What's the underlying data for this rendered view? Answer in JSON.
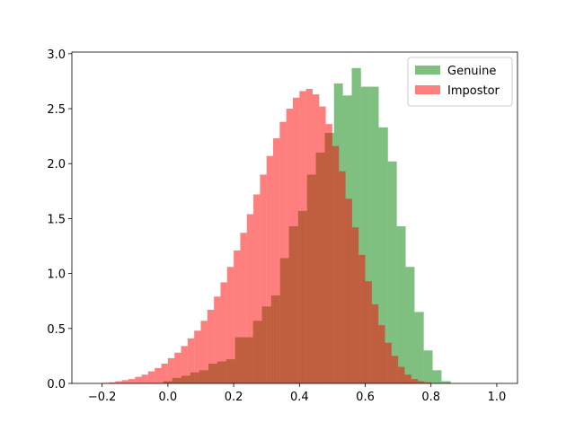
{
  "chart_data": {
    "type": "histogram",
    "xlim": [
      -0.292,
      1.063
    ],
    "ylim": [
      0,
      3.015
    ],
    "xticks": [
      {
        "value": -0.2,
        "label": "−0.2"
      },
      {
        "value": 0,
        "label": "0.0"
      },
      {
        "value": 0.2,
        "label": "0.2"
      },
      {
        "value": 0.4,
        "label": "0.4"
      },
      {
        "value": 0.6,
        "label": "0.6"
      },
      {
        "value": 0.8,
        "label": "0.8"
      },
      {
        "value": 1,
        "label": "1.0"
      }
    ],
    "yticks": [
      {
        "value": 0,
        "label": "0.0"
      },
      {
        "value": 0.5,
        "label": "0.5"
      },
      {
        "value": 1,
        "label": "1.0"
      },
      {
        "value": 1.5,
        "label": "1.5"
      },
      {
        "value": 2,
        "label": "2.0"
      },
      {
        "value": 2.5,
        "label": "2.5"
      },
      {
        "value": 3,
        "label": "3.0"
      }
    ],
    "legend": "upper right",
    "series": [
      {
        "name": "Genuine",
        "color": "#008000",
        "bins": [
          -0.014,
          0.013,
          0.041,
          0.068,
          0.095,
          0.123,
          0.15,
          0.177,
          0.204,
          0.232,
          0.259,
          0.286,
          0.314,
          0.341,
          0.368,
          0.396,
          0.423,
          0.45,
          0.477,
          0.505,
          0.532,
          0.559,
          0.587,
          0.614,
          0.641,
          0.669,
          0.696,
          0.723,
          0.75,
          0.778,
          0.805,
          0.832,
          0.86
        ],
        "values": [
          0.02,
          0.05,
          0.07,
          0.1,
          0.12,
          0.18,
          0.2,
          0.22,
          0.42,
          0.42,
          0.57,
          0.7,
          0.8,
          1.14,
          1.43,
          1.57,
          1.9,
          2.1,
          2.28,
          2.73,
          2.62,
          2.87,
          2.7,
          2.7,
          2.33,
          2.02,
          1.43,
          1.06,
          0.65,
          0.3,
          0.12,
          0.02
        ]
      },
      {
        "name": "Impostor",
        "color": "#ff0000",
        "bins": [
          -0.2,
          -0.18,
          -0.16,
          -0.14,
          -0.12,
          -0.1,
          -0.08,
          -0.06,
          -0.04,
          -0.02,
          0,
          0.02,
          0.04,
          0.06,
          0.08,
          0.1,
          0.12,
          0.14,
          0.16,
          0.18,
          0.2,
          0.22,
          0.24,
          0.26,
          0.28,
          0.3,
          0.32,
          0.34,
          0.36,
          0.38,
          0.4,
          0.42,
          0.44,
          0.46,
          0.48,
          0.5,
          0.52,
          0.54,
          0.56,
          0.58,
          0.6,
          0.62,
          0.64,
          0.66,
          0.68,
          0.7,
          0.72,
          0.74,
          0.76,
          0.78,
          0.8
        ],
        "values": [
          0.005,
          0.01,
          0.02,
          0.03,
          0.04,
          0.06,
          0.08,
          0.11,
          0.14,
          0.18,
          0.23,
          0.28,
          0.34,
          0.41,
          0.48,
          0.57,
          0.67,
          0.79,
          0.92,
          1.06,
          1.21,
          1.37,
          1.54,
          1.72,
          1.9,
          2.07,
          2.23,
          2.38,
          2.5,
          2.6,
          2.66,
          2.68,
          2.63,
          2.52,
          2.36,
          2.16,
          1.93,
          1.68,
          1.42,
          1.17,
          0.93,
          0.72,
          0.53,
          0.37,
          0.25,
          0.15,
          0.08,
          0.04,
          0.02,
          0.01
        ]
      }
    ]
  }
}
